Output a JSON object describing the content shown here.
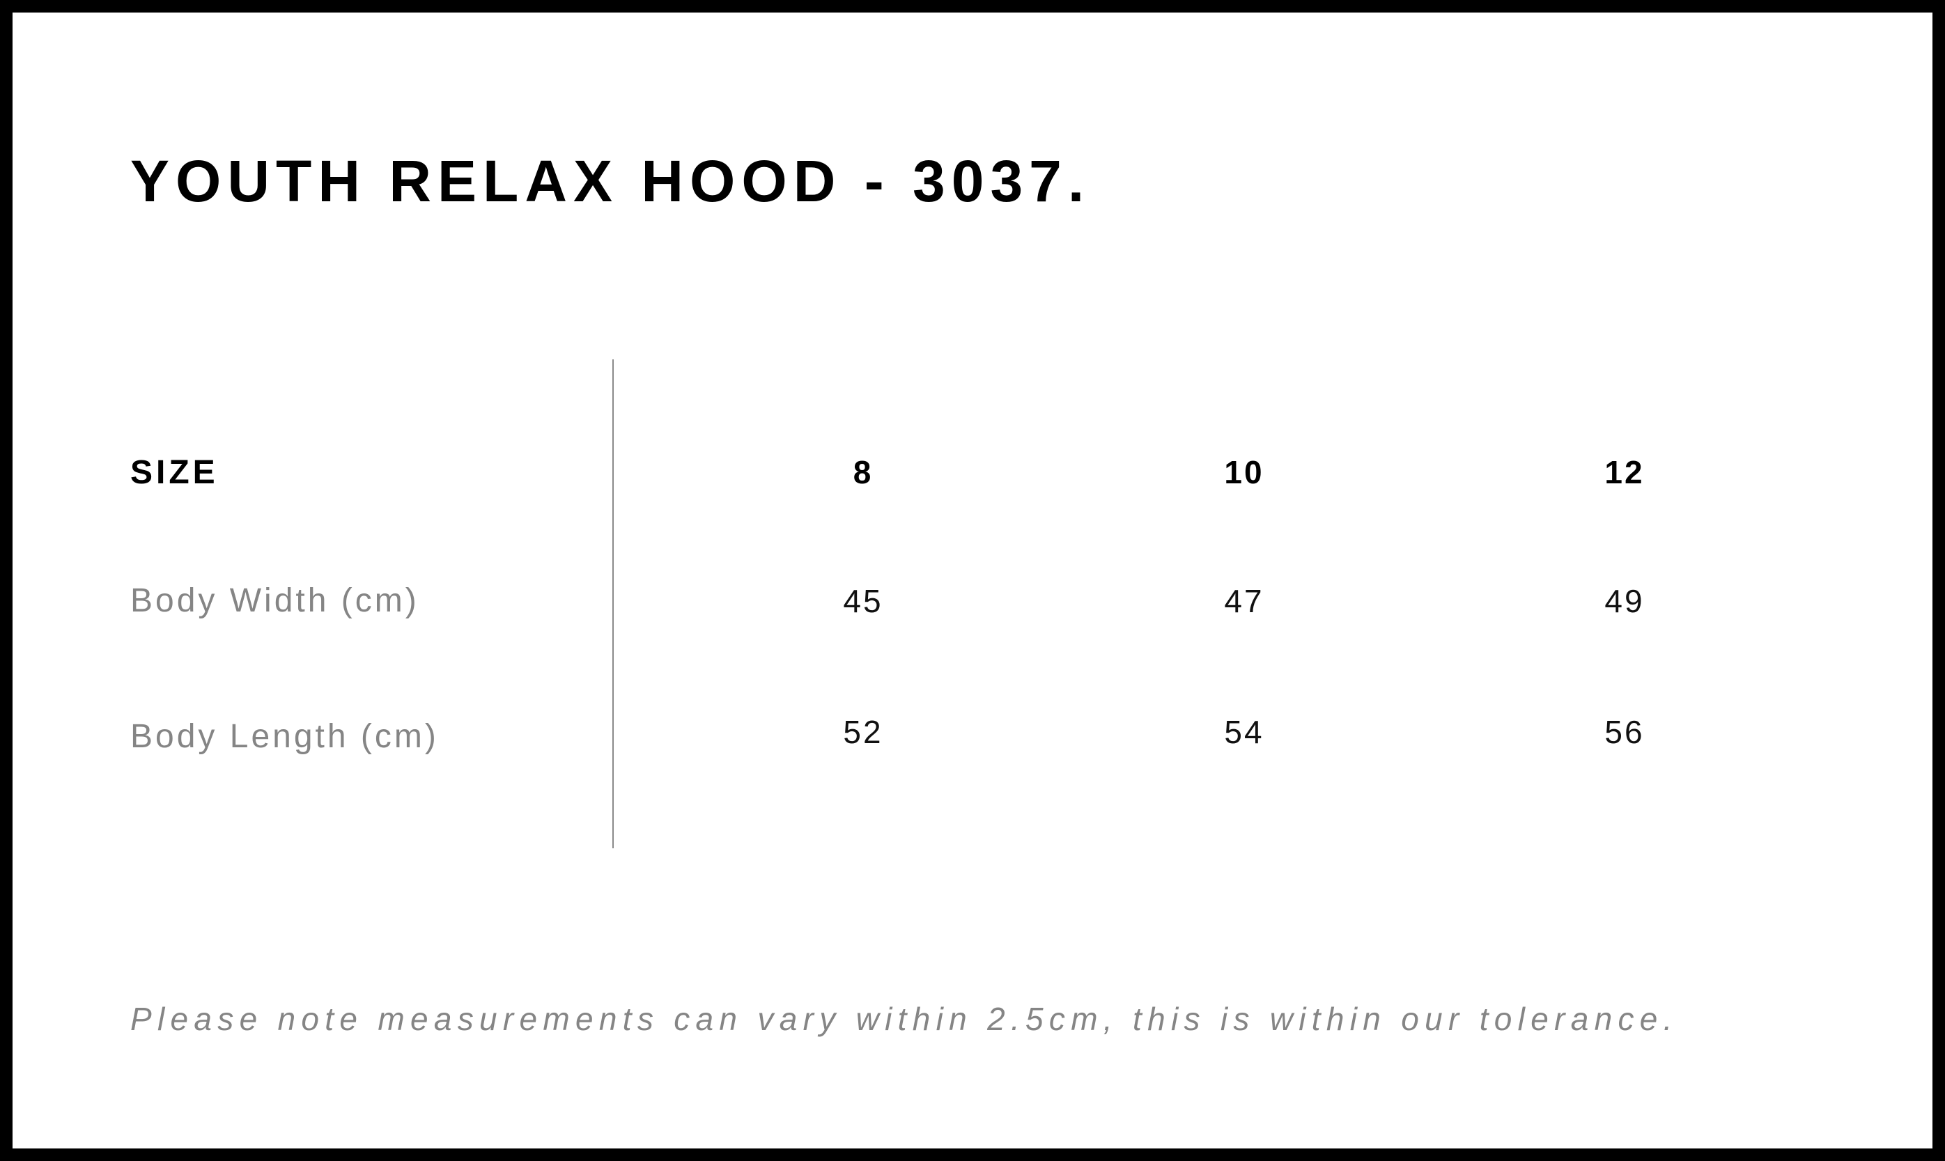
{
  "title": "YOUTH RELAX HOOD - 3037.",
  "table": {
    "header_label": "SIZE",
    "sizes": [
      "8",
      "10",
      "12"
    ],
    "rows": [
      {
        "label": "Body Width (cm)",
        "values": [
          "45",
          "47",
          "49"
        ]
      },
      {
        "label": "Body Length (cm)",
        "values": [
          "52",
          "54",
          "56"
        ]
      }
    ]
  },
  "note": "Please note measurements can vary within 2.5cm, this is within our tolerance."
}
